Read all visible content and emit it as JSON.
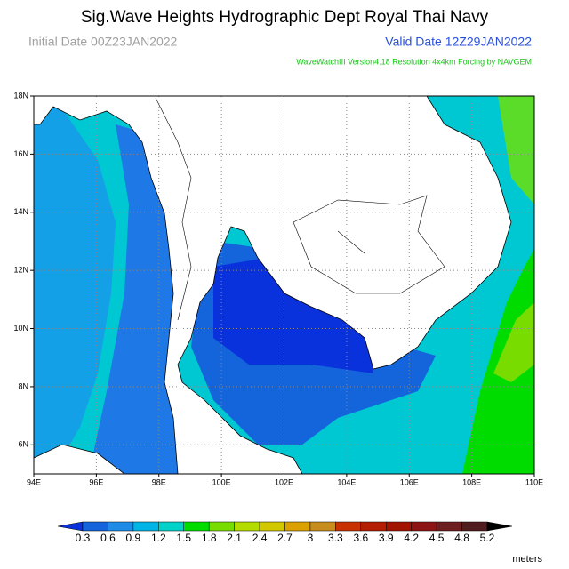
{
  "header": {
    "title": "Sig.Wave Heights Hydrographic Dept Royal Thai Navy",
    "initial_date": "Initial Date 00Z23JAN2022",
    "valid_date": "Valid Date 12Z29JAN2022",
    "subtitle": "WaveWatchIII Version4.18 Resolution 4x4km Forcing by NAVGEM"
  },
  "map": {
    "xlim": [
      94,
      110
    ],
    "ylim": [
      5,
      18
    ],
    "xticks": [
      {
        "value": 94,
        "label": "94E"
      },
      {
        "value": 96,
        "label": "96E"
      },
      {
        "value": 98,
        "label": "98E"
      },
      {
        "value": 100,
        "label": "100E"
      },
      {
        "value": 102,
        "label": "102E"
      },
      {
        "value": 104,
        "label": "104E"
      },
      {
        "value": 106,
        "label": "106E"
      },
      {
        "value": 108,
        "label": "108E"
      },
      {
        "value": 110,
        "label": "110E"
      }
    ],
    "yticks": [
      {
        "value": 6,
        "label": "6N"
      },
      {
        "value": 8,
        "label": "8N"
      },
      {
        "value": 10,
        "label": "10N"
      },
      {
        "value": 12,
        "label": "12N"
      },
      {
        "value": 14,
        "label": "14N"
      },
      {
        "value": 16,
        "label": "16N"
      },
      {
        "value": 18,
        "label": "18N"
      }
    ]
  },
  "colorbar": {
    "levels": [
      0.3,
      0.6,
      0.9,
      1.2,
      1.5,
      1.8,
      2.1,
      2.4,
      2.7,
      3,
      3.3,
      3.6,
      3.9,
      4.2,
      4.5,
      4.8,
      5.2
    ],
    "colors": [
      "#0a32dc",
      "#1464dc",
      "#1e8ce6",
      "#00b4e6",
      "#00d2c8",
      "#00dc00",
      "#78dc00",
      "#b4dc00",
      "#d2c800",
      "#dca000",
      "#c88c1e",
      "#c83200",
      "#b41e00",
      "#a01400",
      "#8c1414",
      "#6e1e1e",
      "#501e1e",
      "#000000"
    ],
    "units": "meters"
  }
}
